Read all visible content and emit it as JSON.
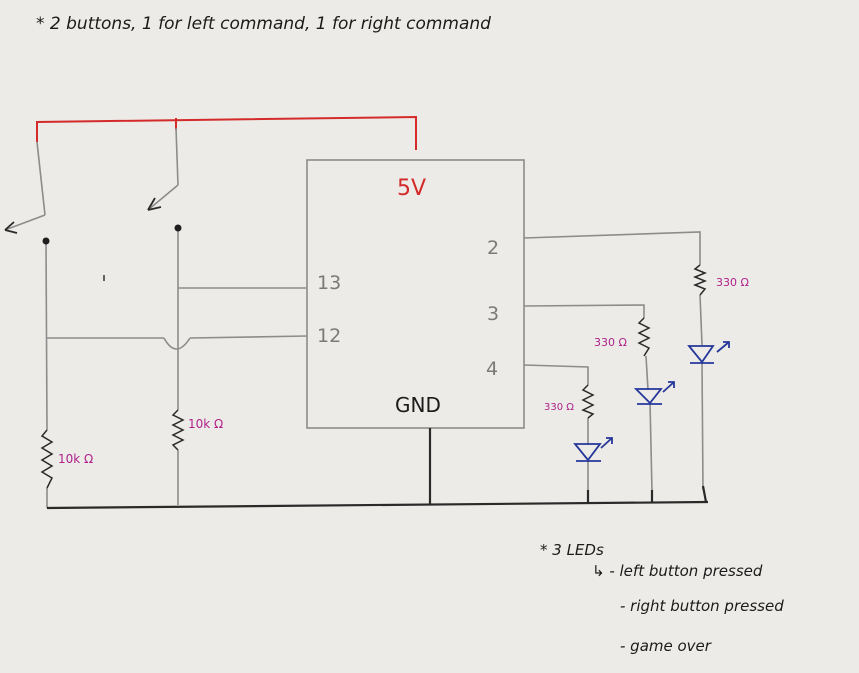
{
  "header_note": "* 2 buttons, 1 for left command, 1 for right command",
  "board": {
    "power_label": "5V",
    "ground_label": "GND",
    "pin_13": "13",
    "pin_12": "12",
    "pin_2": "2",
    "pin_3": "3",
    "pin_4": "4"
  },
  "resistors": {
    "left_pulldown": "10k Ω",
    "right_pulldown": "10k Ω",
    "led_pin2": "330 Ω",
    "led_pin3": "330 Ω",
    "led_pin4": "330 Ω"
  },
  "leds_note": {
    "title": "* 3 LEDs",
    "items": [
      "↳ - left button pressed",
      "- right button pressed",
      "- game over"
    ]
  },
  "colors": {
    "wire": "#8c8c8c",
    "power_wire": "#d42a2a",
    "ground_wire": "#2a2a2a",
    "resistor_label": "#b0228a",
    "led": "#26379a",
    "ink": "#1b1b1b"
  }
}
